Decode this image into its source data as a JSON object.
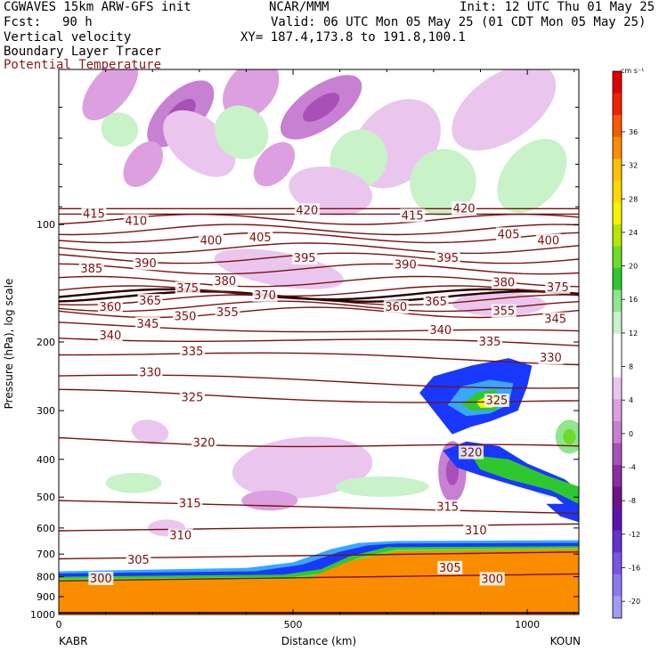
{
  "header": {
    "model": "CGWAVES 15km ARW-GFS init",
    "org": "NCAR/MMM",
    "init": "Init: 12 UTC Thu 01 May 25",
    "fcst_label": "Fcst:",
    "fcst_value": "90 h",
    "valid": "Valid: 06 UTC Mon 05 May 25 (01 CDT Mon 05 May 25)",
    "xy": "XY= 187.4,173.8 to 191.8,100.1",
    "fields": [
      "Vertical velocity",
      "Boundary Layer Tracer",
      "Potential Temperature"
    ],
    "potential_temperature_color": "#8b1a1a"
  },
  "chart_data": {
    "type": "cross-section",
    "xlabel": "Distance (km)",
    "ylabel": "Pressure (hPa), log scale",
    "xlim": [
      0,
      1110
    ],
    "ylim": [
      1000,
      40
    ],
    "y_scale": "log",
    "x_ticks": [
      "0",
      "500",
      "1000"
    ],
    "y_ticks": [
      "100",
      "200",
      "300",
      "400",
      "500",
      "600",
      "700",
      "800",
      "900",
      "1000"
    ],
    "left_endpoint": "KABR",
    "right_endpoint": "KOUN",
    "colorbar": {
      "unit": "cm s⁻¹",
      "labels": [
        "36",
        "32",
        "28",
        "24",
        "20",
        "16",
        "12",
        "8",
        "4",
        "0",
        "-4",
        "-8",
        "-12",
        "-16",
        "-20"
      ],
      "colors": [
        "#e00000",
        "#f42000",
        "#f85a00",
        "#fa8c00",
        "#ffc000",
        "#ffd800",
        "#f5f500",
        "#b4e600",
        "#6cdc28",
        "#2ec82e",
        "#8ee68e",
        "#c8f2c8",
        "#ffffff",
        "#ffffff",
        "#eac6ee",
        "#dca0e0",
        "#c880d2",
        "#a850b8",
        "#8c2ca0",
        "#6e1488",
        "#5a14b4",
        "#6432d2",
        "#7856e6",
        "#8c78f0",
        "#a09cf8"
      ]
    },
    "theta_contours": [
      {
        "label": "300",
        "p_at_left": 820
      },
      {
        "label": "305",
        "p_at_left": 720
      },
      {
        "label": "310",
        "p_at_left": 610
      },
      {
        "label": "315",
        "p_at_left": 510
      },
      {
        "label": "320",
        "p_at_left": 355
      },
      {
        "label": "325",
        "p_at_left": 270
      },
      {
        "label": "330",
        "p_at_left": 245
      },
      {
        "label": "335",
        "p_at_left": 212
      },
      {
        "label": "340",
        "p_at_left": 193
      },
      {
        "label": "345",
        "p_at_left": 180
      },
      {
        "label": "350",
        "p_at_left": 168
      },
      {
        "label": "355",
        "p_at_left": 162
      },
      {
        "label": "360",
        "p_at_left": 156
      },
      {
        "label": "365",
        "p_at_left": 153
      },
      {
        "label": "370",
        "p_at_left": 151
      },
      {
        "label": "375",
        "p_at_left": 148
      },
      {
        "label": "380",
        "p_at_left": 140
      },
      {
        "label": "385",
        "p_at_left": 130
      },
      {
        "label": "390",
        "p_at_left": 122
      },
      {
        "label": "395",
        "p_at_left": 115
      },
      {
        "label": "400",
        "p_at_left": 108
      },
      {
        "label": "405",
        "p_at_left": 103
      },
      {
        "label": "410",
        "p_at_left": 97
      },
      {
        "label": "415",
        "p_at_left": 94
      },
      {
        "label": "420",
        "p_at_left": 91
      }
    ],
    "theta_labels": [
      {
        "text": "415",
        "x": 75,
        "p": 94
      },
      {
        "text": "410",
        "x": 165,
        "p": 98
      },
      {
        "text": "420",
        "x": 530,
        "p": 92
      },
      {
        "text": "415",
        "x": 755,
        "p": 95
      },
      {
        "text": "420",
        "x": 865,
        "p": 91
      },
      {
        "text": "400",
        "x": 325,
        "p": 110
      },
      {
        "text": "405",
        "x": 430,
        "p": 108
      },
      {
        "text": "405",
        "x": 960,
        "p": 106
      },
      {
        "text": "400",
        "x": 1045,
        "p": 110
      },
      {
        "text": "385",
        "x": 70,
        "p": 130
      },
      {
        "text": "390",
        "x": 185,
        "p": 126
      },
      {
        "text": "395",
        "x": 525,
        "p": 122
      },
      {
        "text": "390",
        "x": 740,
        "p": 127
      },
      {
        "text": "395",
        "x": 830,
        "p": 122
      },
      {
        "text": "375",
        "x": 275,
        "p": 146
      },
      {
        "text": "380",
        "x": 355,
        "p": 140
      },
      {
        "text": "370",
        "x": 440,
        "p": 152
      },
      {
        "text": "380",
        "x": 950,
        "p": 141
      },
      {
        "text": "375",
        "x": 1065,
        "p": 145
      },
      {
        "text": "360",
        "x": 110,
        "p": 163
      },
      {
        "text": "365",
        "x": 195,
        "p": 157
      },
      {
        "text": "360",
        "x": 720,
        "p": 163
      },
      {
        "text": "365",
        "x": 805,
        "p": 158
      },
      {
        "text": "355",
        "x": 360,
        "p": 168
      },
      {
        "text": "350",
        "x": 270,
        "p": 172
      },
      {
        "text": "355",
        "x": 950,
        "p": 167
      },
      {
        "text": "345",
        "x": 1060,
        "p": 175
      },
      {
        "text": "345",
        "x": 190,
        "p": 180
      },
      {
        "text": "340",
        "x": 110,
        "p": 193
      },
      {
        "text": "340",
        "x": 815,
        "p": 187
      },
      {
        "text": "335",
        "x": 285,
        "p": 212
      },
      {
        "text": "335",
        "x": 920,
        "p": 200
      },
      {
        "text": "330",
        "x": 195,
        "p": 240
      },
      {
        "text": "330",
        "x": 1050,
        "p": 220
      },
      {
        "text": "325",
        "x": 285,
        "p": 278
      },
      {
        "text": "325",
        "x": 935,
        "p": 283
      },
      {
        "text": "320",
        "x": 310,
        "p": 363
      },
      {
        "text": "320",
        "x": 880,
        "p": 385
      },
      {
        "text": "315",
        "x": 280,
        "p": 520
      },
      {
        "text": "315",
        "x": 830,
        "p": 530
      },
      {
        "text": "310",
        "x": 260,
        "p": 628
      },
      {
        "text": "310",
        "x": 890,
        "p": 610
      },
      {
        "text": "305",
        "x": 170,
        "p": 725
      },
      {
        "text": "305",
        "x": 835,
        "p": 760
      },
      {
        "text": "300",
        "x": 90,
        "p": 810
      },
      {
        "text": "300",
        "x": 925,
        "p": 812
      }
    ],
    "w_areas": [
      {
        "x": 110,
        "p": 45,
        "rx": 40,
        "rp": 0.22,
        "rot": 40,
        "level": -6
      },
      {
        "x": 260,
        "p": 52,
        "rx": 45,
        "rp": 0.25,
        "rot": 45,
        "level": -8
      },
      {
        "x": 180,
        "p": 70,
        "rx": 35,
        "rp": 0.15,
        "rot": 35,
        "level": -6
      },
      {
        "x": 410,
        "p": 45,
        "rx": 50,
        "rp": 0.2,
        "rot": 40,
        "level": -6
      },
      {
        "x": 560,
        "p": 50,
        "rx": 45,
        "rp": 0.28,
        "rot": 55,
        "level": -8
      },
      {
        "x": 950,
        "p": 50,
        "rx": 70,
        "rp": 0.35,
        "rot": 55,
        "level": -4
      },
      {
        "x": 460,
        "p": 70,
        "rx": 35,
        "rp": 0.15,
        "rot": 40,
        "level": -6
      },
      {
        "x": 300,
        "p": 62,
        "rx": 90,
        "rp": 0.15,
        "rot": 40,
        "level": -4
      },
      {
        "x": 720,
        "p": 62,
        "rx": 80,
        "rp": 0.3,
        "rot": 45,
        "level": -4
      },
      {
        "x": 390,
        "p": 58,
        "rx": 60,
        "rp": 0.15,
        "rot": 45,
        "level": 4
      },
      {
        "x": 130,
        "p": 57,
        "rx": 40,
        "rp": 0.1,
        "rot": 20,
        "level": 4
      },
      {
        "x": 640,
        "p": 68,
        "rx": 60,
        "rp": 0.18,
        "rot": 30,
        "level": 4
      },
      {
        "x": 820,
        "p": 78,
        "rx": 70,
        "rp": 0.2,
        "rot": 35,
        "level": 4
      },
      {
        "x": 1010,
        "p": 75,
        "rx": 60,
        "rp": 0.25,
        "rot": 40,
        "level": 4
      },
      {
        "x": 580,
        "p": 82,
        "rx": 90,
        "rp": 0.14,
        "rot": 10,
        "level": -4
      },
      {
        "x": 470,
        "p": 130,
        "rx": 140,
        "rp": 0.1,
        "rot": 10,
        "level": -4
      },
      {
        "x": 520,
        "p": 420,
        "rx": 150,
        "rp": 0.18,
        "rot": -5,
        "level": -4
      },
      {
        "x": 450,
        "p": 510,
        "rx": 60,
        "rp": 0.06,
        "rot": 0,
        "level": -6
      },
      {
        "x": 840,
        "p": 430,
        "rx": 30,
        "rp": 0.18,
        "rot": 0,
        "level": -8
      },
      {
        "x": 195,
        "p": 340,
        "rx": 40,
        "rp": 0.07,
        "rot": 10,
        "level": -4
      },
      {
        "x": 230,
        "p": 600,
        "rx": 40,
        "rp": 0.05,
        "rot": 0,
        "level": -4
      },
      {
        "x": 690,
        "p": 470,
        "rx": 100,
        "rp": 0.06,
        "rot": 0,
        "level": 4
      },
      {
        "x": 160,
        "p": 460,
        "rx": 60,
        "rp": 0.06,
        "rot": 0,
        "level": 4
      },
      {
        "x": 1090,
        "p": 350,
        "rx": 30,
        "rp": 0.1,
        "rot": 0,
        "level": 8
      },
      {
        "x": 1050,
        "p": 470,
        "rx": 40,
        "rp": 0.06,
        "rot": 0,
        "level": 4
      },
      {
        "x": 940,
        "p": 160,
        "rx": 100,
        "rp": 0.07,
        "rot": 0,
        "level": -4
      }
    ],
    "tracer_levels": [
      {
        "level": 0.2,
        "color": "#38a8ff"
      },
      {
        "level": 0.35,
        "color": "#1838ff"
      },
      {
        "level": 0.5,
        "color": "#2ec82e"
      },
      {
        "level": 0.65,
        "color": "#6cdc28"
      },
      {
        "level": 0.8,
        "color": "#fa8c00"
      }
    ]
  }
}
